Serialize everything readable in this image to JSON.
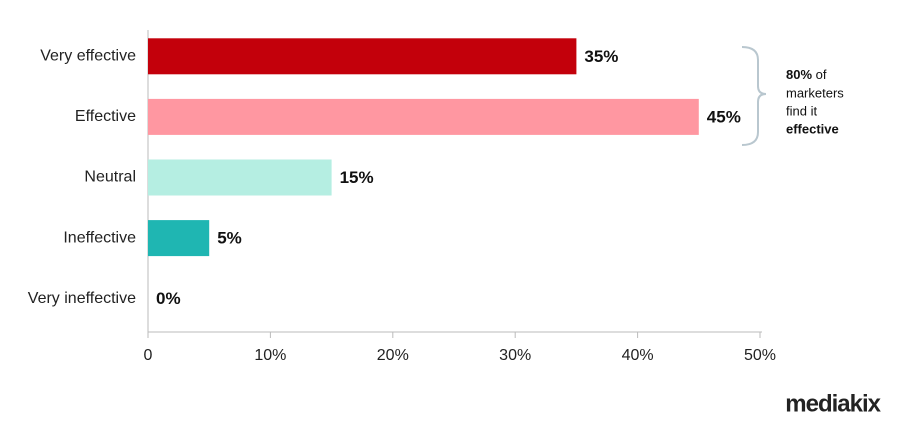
{
  "chart_data": {
    "type": "bar",
    "orientation": "horizontal",
    "categories": [
      "Very effective",
      "Effective",
      "Neutral",
      "Ineffective",
      "Very ineffective"
    ],
    "values": [
      35,
      45,
      15,
      5,
      0
    ],
    "value_labels": [
      "35%",
      "45%",
      "15%",
      "5%",
      "0%"
    ],
    "colors": [
      "#c3000b",
      "#ff97a1",
      "#b5eee2",
      "#1fb6b2",
      "#777777"
    ],
    "xlim": [
      0,
      50
    ],
    "xticks": [
      0,
      {
        "value": 10,
        "label": "10%"
      },
      {
        "value": 20,
        "label": "20%"
      },
      {
        "value": 30,
        "label": "30%"
      },
      {
        "value": 40,
        "label": "40%"
      },
      {
        "value": 50,
        "label": "50%"
      }
    ],
    "annotation": [
      "80%",
      "of",
      "marketers",
      "find it",
      "effective"
    ],
    "logo": "mediakix"
  }
}
